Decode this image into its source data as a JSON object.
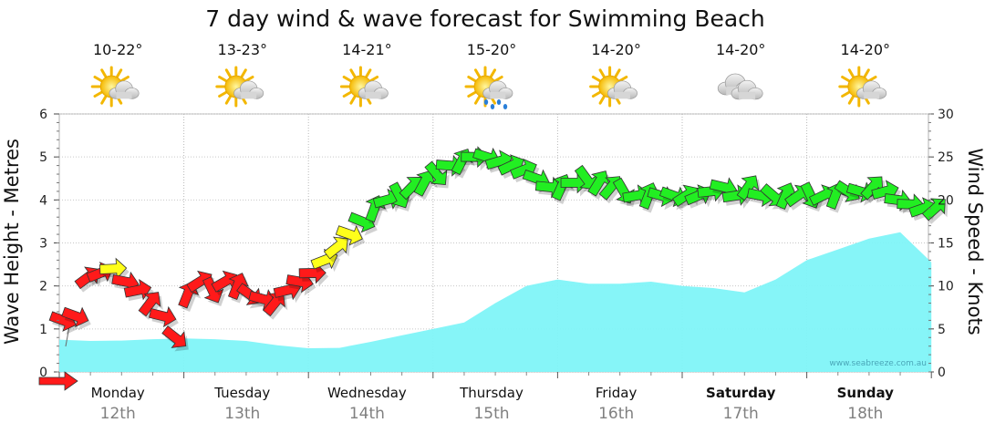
{
  "chart_data": {
    "type": "area",
    "title": "7 day wind & wave forecast for Swimming Beach",
    "ylabel_left": "Wave Height - Metres",
    "ylabel_right": "Wind Speed - Knots",
    "ylim_left": [
      0,
      6
    ],
    "ylim_right": [
      0,
      30
    ],
    "yticks_left": [
      "0",
      "1",
      "2",
      "3",
      "4",
      "5",
      "6"
    ],
    "yticks_right": [
      "0",
      "5",
      "10",
      "15",
      "20",
      "25",
      "30"
    ],
    "watermark": "www.seabreeze.com.au",
    "days": [
      {
        "day": "Monday",
        "date": "12th",
        "temp": "10-22°",
        "icon": "partly-cloudy-icon",
        "bold": false
      },
      {
        "day": "Tuesday",
        "date": "13th",
        "temp": "13-23°",
        "icon": "partly-cloudy-icon",
        "bold": false
      },
      {
        "day": "Wednesday",
        "date": "14th",
        "temp": "14-21°",
        "icon": "partly-cloudy-icon",
        "bold": false
      },
      {
        "day": "Thursday",
        "date": "15th",
        "temp": "15-20°",
        "icon": "rain-showers-icon",
        "bold": false
      },
      {
        "day": "Friday",
        "date": "16th",
        "temp": "14-20°",
        "icon": "partly-cloudy-icon",
        "bold": false
      },
      {
        "day": "Saturday",
        "date": "17th",
        "temp": "14-20°",
        "icon": "cloudy-icon",
        "bold": true
      },
      {
        "day": "Sunday",
        "date": "18th",
        "temp": "14-20°",
        "icon": "partly-cloudy-icon",
        "bold": true
      }
    ],
    "wave_height_m": {
      "t_days": [
        0,
        0.25,
        0.5,
        0.75,
        1,
        1.25,
        1.5,
        1.75,
        2,
        2.25,
        2.5,
        2.75,
        3,
        3.25,
        3.5,
        3.75,
        4,
        4.25,
        4.5,
        4.75,
        5,
        5.25,
        5.5,
        5.75,
        6,
        6.25,
        6.5,
        6.75,
        7
      ],
      "values": [
        0.75,
        0.72,
        0.73,
        0.76,
        0.78,
        0.76,
        0.72,
        0.62,
        0.55,
        0.56,
        0.7,
        0.85,
        1.0,
        1.15,
        1.6,
        2.0,
        2.15,
        2.05,
        2.05,
        2.1,
        2.0,
        1.95,
        1.85,
        2.15,
        2.6,
        2.85,
        3.1,
        3.25,
        2.55
      ]
    },
    "wind_knots": {
      "t_days": [
        0,
        0.1,
        0.2,
        0.3,
        0.4,
        0.5,
        0.6,
        0.7,
        0.8,
        0.9,
        1.0,
        1.1,
        1.2,
        1.3,
        1.4,
        1.5,
        1.6,
        1.7,
        1.8,
        1.9,
        2.0,
        2.1,
        2.2,
        2.3,
        2.4,
        2.5,
        2.6,
        2.7,
        2.8,
        2.9,
        3.0,
        3.1,
        3.2,
        3.3,
        3.4,
        3.5,
        3.6,
        3.7,
        3.8,
        3.9,
        4.0,
        4.1,
        4.2,
        4.3,
        4.4,
        4.5,
        4.6,
        4.7,
        4.8,
        4.9,
        5.0,
        5.1,
        5.2,
        5.3,
        5.4,
        5.5,
        5.6,
        5.7,
        5.8,
        5.9,
        6.0,
        6.1,
        6.2,
        6.3,
        6.4,
        6.5,
        6.6,
        6.7,
        6.8,
        6.9,
        7.0
      ],
      "values": [
        6,
        6.5,
        11,
        11.5,
        12,
        10.5,
        9.5,
        8,
        6.5,
        4,
        9,
        10.5,
        9.5,
        10.5,
        10,
        9,
        8.5,
        8,
        9.5,
        10.5,
        11.5,
        13,
        14.5,
        16,
        17.5,
        19,
        20,
        20.5,
        21.5,
        22,
        23,
        24,
        24.5,
        25,
        25,
        24.5,
        24,
        23.5,
        22.5,
        21.5,
        21.5,
        22,
        22.5,
        22,
        21.5,
        21,
        20.5,
        20.5,
        20.5,
        20.5,
        20.5,
        20.5,
        21,
        21.5,
        20.5,
        21.5,
        20.5,
        20.5,
        20.5,
        20.5,
        20.5,
        20.5,
        20.5,
        21,
        21,
        21.5,
        21,
        20,
        19.5,
        19,
        19
      ],
      "speed_colours": {
        "light": "#ff1a1a",
        "moderate": "#ffff1a",
        "strong": "#22ee22"
      }
    }
  }
}
